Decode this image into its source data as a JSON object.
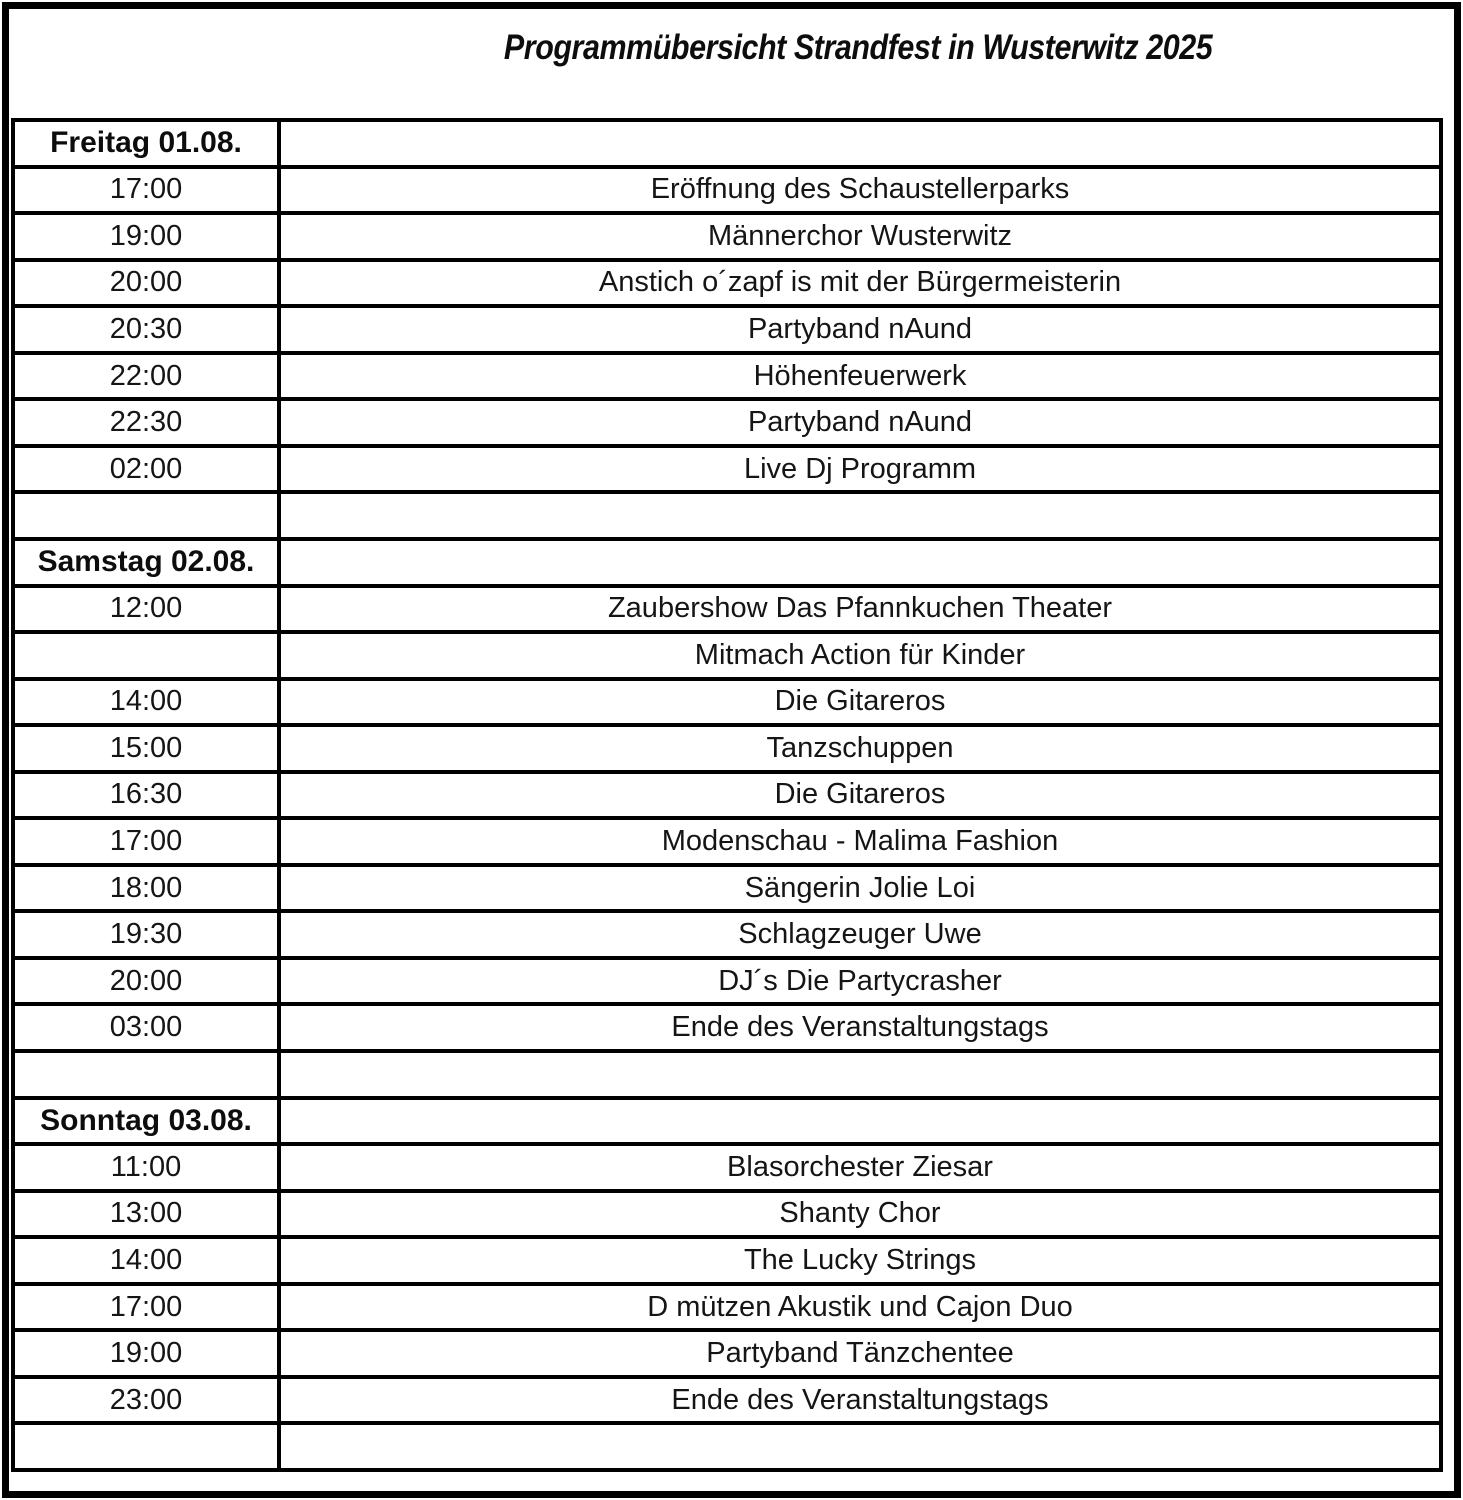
{
  "title": "Programmübersicht Strandfest in Wusterwitz 2025",
  "colors": {
    "border": "#000000",
    "text": "#111111",
    "background": "#ffffff"
  },
  "table": {
    "columns": [
      "time",
      "event"
    ],
    "rows": [
      {
        "kind": "day",
        "time": "Freitag 01.08.",
        "event": ""
      },
      {
        "kind": "event",
        "time": "17:00",
        "event": "Eröffnung des Schaustellerparks"
      },
      {
        "kind": "event",
        "time": "19:00",
        "event": "Männerchor Wusterwitz"
      },
      {
        "kind": "event",
        "time": "20:00",
        "event": "Anstich o´zapf is mit der Bürgermeisterin"
      },
      {
        "kind": "event",
        "time": "20:30",
        "event": "Partyband nAund"
      },
      {
        "kind": "event",
        "time": "22:00",
        "event": "Höhenfeuerwerk"
      },
      {
        "kind": "event",
        "time": "22:30",
        "event": "Partyband nAund"
      },
      {
        "kind": "event",
        "time": "02:00",
        "event": "Live Dj Programm"
      },
      {
        "kind": "empty",
        "time": "",
        "event": ""
      },
      {
        "kind": "day",
        "time": "Samstag 02.08.",
        "event": ""
      },
      {
        "kind": "event",
        "time": "12:00",
        "event": "Zaubershow Das Pfannkuchen Theater"
      },
      {
        "kind": "event",
        "time": "",
        "event": "Mitmach Action für Kinder"
      },
      {
        "kind": "event",
        "time": "14:00",
        "event": "Die Gitareros"
      },
      {
        "kind": "event",
        "time": "15:00",
        "event": "Tanzschuppen"
      },
      {
        "kind": "event",
        "time": "16:30",
        "event": "Die Gitareros"
      },
      {
        "kind": "event",
        "time": "17:00",
        "event": "Modenschau - Malima Fashion"
      },
      {
        "kind": "event",
        "time": "18:00",
        "event": "Sängerin Jolie Loi"
      },
      {
        "kind": "event",
        "time": "19:30",
        "event": "Schlagzeuger Uwe"
      },
      {
        "kind": "event",
        "time": "20:00",
        "event": "DJ´s Die Partycrasher"
      },
      {
        "kind": "event",
        "time": "03:00",
        "event": "Ende des Veranstaltungstags"
      },
      {
        "kind": "empty",
        "time": "",
        "event": ""
      },
      {
        "kind": "day",
        "time": "Sonntag 03.08.",
        "event": ""
      },
      {
        "kind": "event",
        "time": "11:00",
        "event": "Blasorchester Ziesar"
      },
      {
        "kind": "event",
        "time": "13:00",
        "event": "Shanty Chor"
      },
      {
        "kind": "event",
        "time": "14:00",
        "event": "The Lucky Strings"
      },
      {
        "kind": "event",
        "time": "17:00",
        "event": "D mützen Akustik und Cajon Duo"
      },
      {
        "kind": "event",
        "time": "19:00",
        "event": "Partyband Tänzchentee"
      },
      {
        "kind": "event",
        "time": "23:00",
        "event": "Ende des Veranstaltungstags"
      },
      {
        "kind": "empty",
        "time": "",
        "event": ""
      }
    ]
  }
}
